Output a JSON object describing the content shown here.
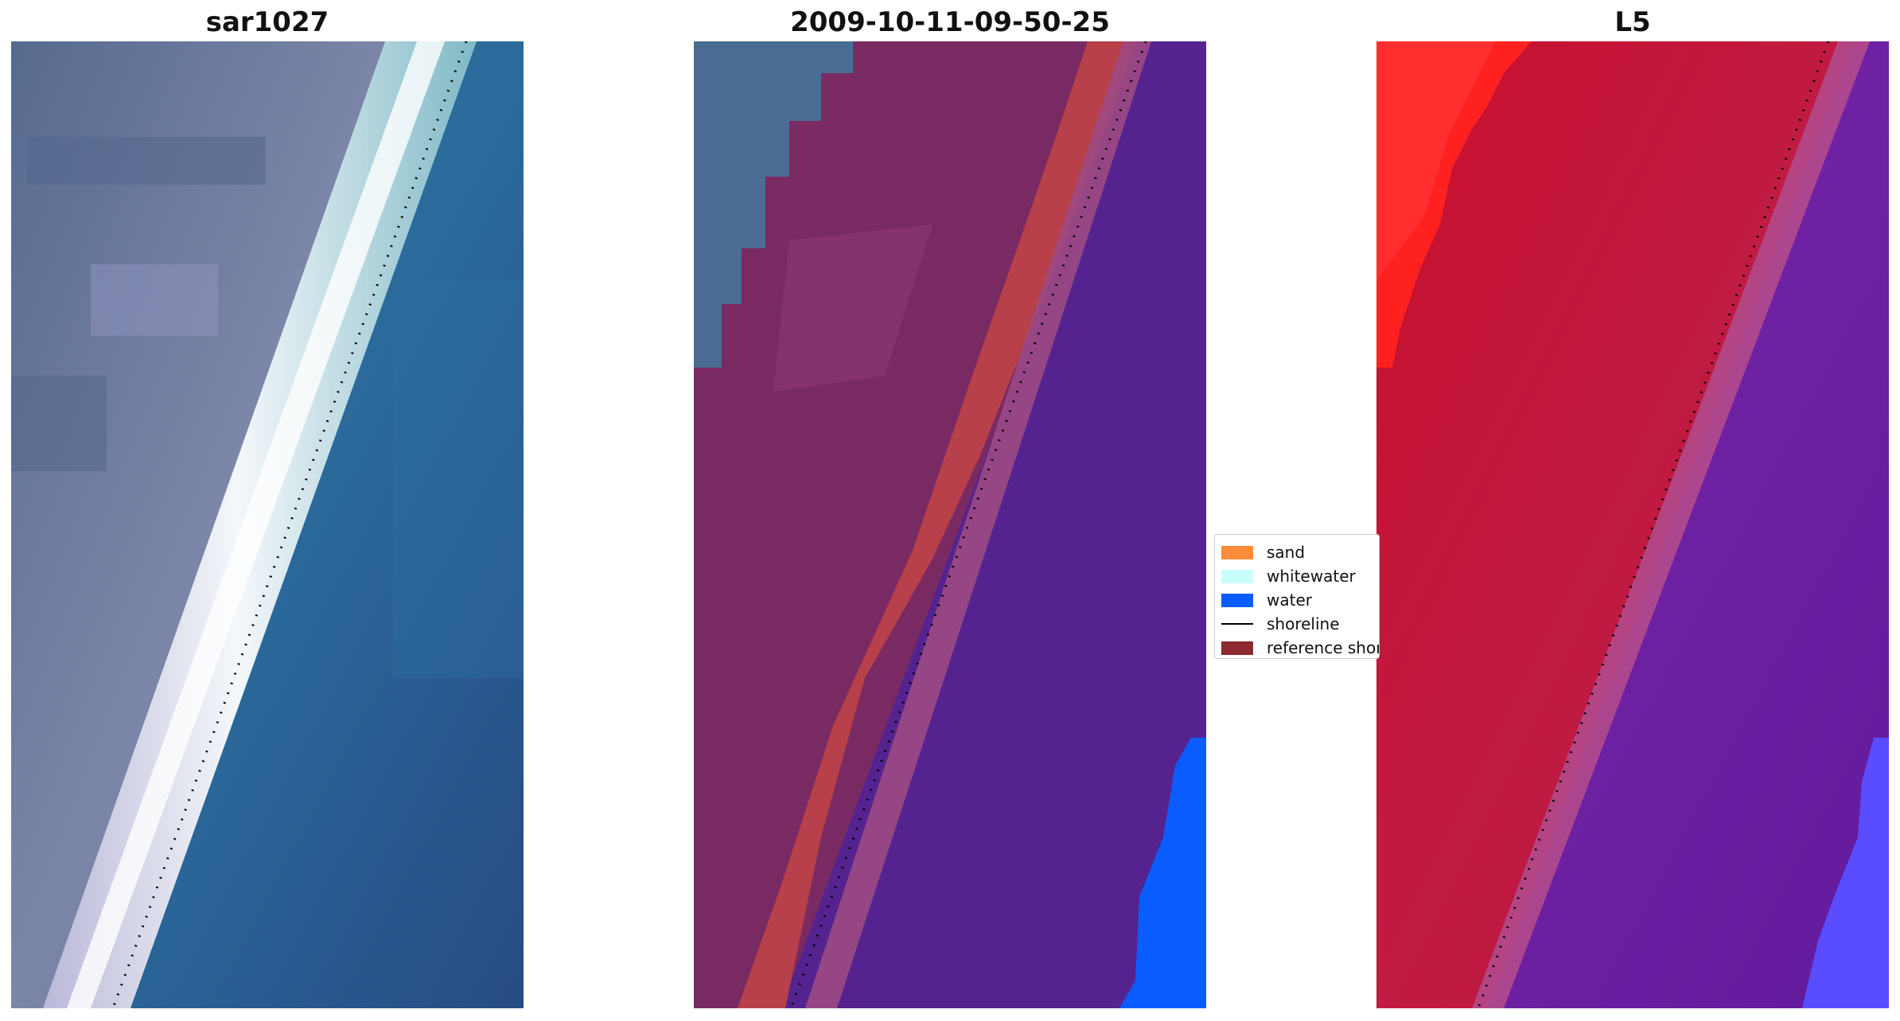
{
  "panels": [
    {
      "title": "sar1027"
    },
    {
      "title": "2009-10-11-09-50-25"
    },
    {
      "title": "L5"
    }
  ],
  "legend": {
    "items": [
      {
        "label": "sand",
        "color": "#ff8c3a",
        "kind": "patch"
      },
      {
        "label": "whitewater",
        "color": "#c8fffb",
        "kind": "patch"
      },
      {
        "label": "water",
        "color": "#0a5cff",
        "kind": "patch"
      },
      {
        "label": "shoreline",
        "color": "#000000",
        "kind": "line"
      },
      {
        "label": "reference shoreline",
        "color": "#8b2a2f",
        "kind": "patch"
      }
    ]
  },
  "colors": {
    "land_rgb": "#6f7b9e",
    "ocean_rgb": "#2e6a98",
    "classified_land": "#7a2a62",
    "classified_sand": "#b8404a",
    "classified_water": "#55238f",
    "classified_water_bright": "#0a5cff",
    "index_land": "#bf1030",
    "index_water": "#6a1a9a",
    "index_bright": "#ff2020"
  }
}
